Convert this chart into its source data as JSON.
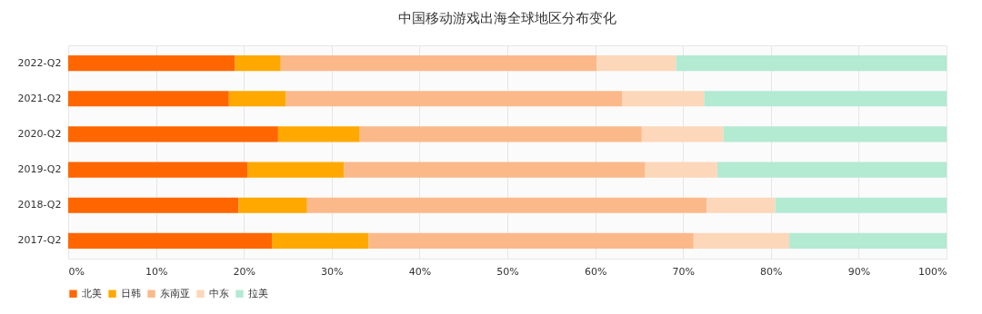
{
  "chart_data": {
    "type": "bar",
    "orientation": "horizontal",
    "stacked": true,
    "title": "中国移动游戏出海全球地区分布变化",
    "categories": [
      "2022-Q2",
      "2021-Q2",
      "2020-Q2",
      "2019-Q2",
      "2018-Q2",
      "2017-Q2"
    ],
    "series": [
      {
        "name": "北美",
        "color": "#ff6600",
        "values": [
          19.0,
          18.3,
          23.9,
          20.4,
          19.4,
          23.2
        ]
      },
      {
        "name": "日韩",
        "color": "#ffa800",
        "values": [
          5.2,
          6.5,
          9.3,
          11.0,
          7.8,
          11.0
        ]
      },
      {
        "name": "东南亚",
        "color": "#fbb98a",
        "values": [
          36.0,
          38.3,
          32.1,
          34.3,
          45.5,
          37.0
        ]
      },
      {
        "name": "中东",
        "color": "#fdd7ba",
        "values": [
          9.0,
          9.3,
          9.3,
          8.2,
          7.8,
          10.9
        ]
      },
      {
        "name": "拉美",
        "color": "#b3ead2",
        "values": [
          30.8,
          27.6,
          25.4,
          26.1,
          19.5,
          17.9
        ]
      }
    ],
    "xlim": [
      0,
      100
    ],
    "xticks": [
      {
        "value": 0,
        "label": "0%"
      },
      {
        "value": 10,
        "label": "10%"
      },
      {
        "value": 20,
        "label": "20%"
      },
      {
        "value": 30,
        "label": "30%"
      },
      {
        "value": 40,
        "label": "40%"
      },
      {
        "value": 50,
        "label": "50%"
      },
      {
        "value": 60,
        "label": "60%"
      },
      {
        "value": 70,
        "label": "70%"
      },
      {
        "value": 80,
        "label": "80%"
      },
      {
        "value": 90,
        "label": "90%"
      },
      {
        "value": 100,
        "label": "100%"
      }
    ],
    "grid": "x",
    "legend": "bottom"
  }
}
